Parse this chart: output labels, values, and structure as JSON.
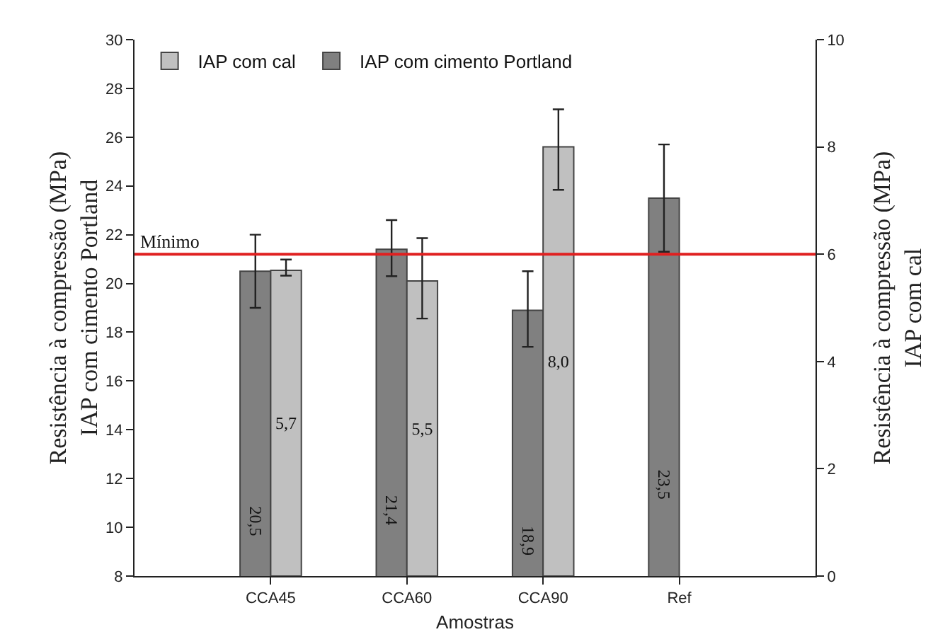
{
  "chart_data": {
    "type": "bar",
    "xlabel": "Amostras",
    "ylabel": "Resistência à compressão (MPa)\nIAP com cimento Portland",
    "y2label": "Resistência à compressão (MPa)\nIAP com cal",
    "categories": [
      "CCA45",
      "CCA60",
      "CCA90",
      "Ref"
    ],
    "series": [
      {
        "name": "IAP com cimento Portland",
        "color": "#808080",
        "values": [
          20.5,
          21.4,
          18.9,
          23.5
        ],
        "errors": [
          [
            19.0,
            22.0
          ],
          [
            20.3,
            22.6
          ],
          [
            17.4,
            20.5
          ],
          [
            21.3,
            25.7
          ]
        ],
        "value_labels": [
          "20,5",
          "21,4",
          "18,9",
          "23,5"
        ]
      },
      {
        "name": "IAP com cal",
        "color": "#c0c0c0",
        "axis": "y2",
        "values": [
          5.7,
          5.5,
          8.0,
          null
        ],
        "errors": [
          [
            5.6,
            5.9
          ],
          [
            4.8,
            6.3
          ],
          [
            7.2,
            8.7
          ],
          null
        ],
        "value_labels": [
          "5,7",
          "5,5",
          "8,0",
          null
        ]
      }
    ],
    "ylim": [
      8,
      30
    ],
    "yticks": [
      8,
      10,
      12,
      14,
      16,
      18,
      20,
      22,
      24,
      26,
      28,
      30
    ],
    "y2lim": [
      0,
      10
    ],
    "y2ticks": [
      0,
      2,
      4,
      6,
      8,
      10
    ],
    "ref_lines": [
      {
        "axis": "y2",
        "value": 6,
        "label": "Mínimo",
        "color": "#e02020",
        "line_style": "solid"
      }
    ],
    "legend": "top left",
    "grid": false
  }
}
